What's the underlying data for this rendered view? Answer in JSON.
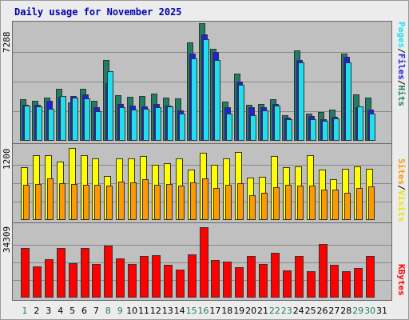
{
  "page": {
    "title": "Daily usage for November 2025"
  },
  "colors": {
    "hits": "#207e64",
    "files": "#2020e0",
    "pages": "#20e0f0",
    "visits": "#ffff00",
    "sites": "#ff9900",
    "kbytes": "#ff0000",
    "weekend_day": "#207e64",
    "weekday": "#000000"
  },
  "axes": {
    "top_max": "7288",
    "mid_max": "1200",
    "bot_max": "34309"
  },
  "legend": {
    "top": {
      "pages": "Pages",
      "sep1": "/",
      "files": "Files",
      "sep2": "/",
      "hits": "Hits"
    },
    "mid": {
      "sites": "Sites",
      "sep1": "/",
      "visits": "Visits"
    },
    "bot": {
      "kbytes": "KBytes"
    }
  },
  "chart_data": [
    {
      "type": "bar",
      "categories": [
        "1",
        "2",
        "3",
        "4",
        "5",
        "6",
        "7",
        "8",
        "9",
        "10",
        "11",
        "12",
        "13",
        "14",
        "15",
        "16",
        "17",
        "18",
        "19",
        "20",
        "21",
        "22",
        "23",
        "24",
        "25",
        "26",
        "27",
        "28",
        "29",
        "30",
        "31"
      ],
      "weekend_days": [
        "1",
        "8",
        "9",
        "15",
        "16",
        "22",
        "23",
        "29",
        "30"
      ],
      "ylim": [
        0,
        7288
      ],
      "series": [
        {
          "name": "Hits",
          "values": [
            2550,
            2450,
            2650,
            3200,
            2350,
            3200,
            2450,
            4950,
            2800,
            2700,
            2750,
            2900,
            2650,
            2600,
            6050,
            7250,
            5650,
            2400,
            4150,
            2200,
            2250,
            2550,
            1600,
            5550,
            1650,
            1750,
            1900,
            5350,
            2850,
            2650,
            0
          ]
        },
        {
          "name": "Files",
          "values": [
            2200,
            2200,
            2450,
            2700,
            2750,
            2850,
            2050,
            3550,
            2250,
            2150,
            2100,
            2250,
            2150,
            1850,
            5350,
            6550,
            5450,
            2050,
            3650,
            2050,
            2050,
            2250,
            1450,
            4950,
            1550,
            1350,
            1500,
            5150,
            2050,
            1900,
            0
          ]
        },
        {
          "name": "Pages",
          "values": [
            2150,
            2100,
            1950,
            2750,
            2650,
            2600,
            1800,
            4300,
            2050,
            1900,
            1950,
            2050,
            2100,
            1650,
            5050,
            6250,
            4950,
            1650,
            3450,
            1600,
            1850,
            2150,
            1350,
            4850,
            1350,
            1250,
            1400,
            4850,
            2100,
            1650,
            0
          ]
        }
      ]
    },
    {
      "type": "bar",
      "categories": [
        "1",
        "2",
        "3",
        "4",
        "5",
        "6",
        "7",
        "8",
        "9",
        "10",
        "11",
        "12",
        "13",
        "14",
        "15",
        "16",
        "17",
        "18",
        "19",
        "20",
        "21",
        "22",
        "23",
        "24",
        "25",
        "26",
        "27",
        "28",
        "29",
        "30",
        "31"
      ],
      "ylim": [
        0,
        1200
      ],
      "series": [
        {
          "name": "Visits",
          "values": [
            860,
            1060,
            1060,
            950,
            1180,
            1060,
            1010,
            720,
            1000,
            1000,
            1050,
            900,
            930,
            1000,
            820,
            1100,
            900,
            1000,
            1110,
            690,
            700,
            1040,
            860,
            880,
            1060,
            820,
            670,
            840,
            870,
            840,
            0
          ]
        },
        {
          "name": "Sites",
          "values": [
            580,
            590,
            680,
            600,
            590,
            580,
            570,
            560,
            620,
            610,
            660,
            570,
            590,
            560,
            610,
            680,
            520,
            580,
            600,
            410,
            440,
            540,
            580,
            560,
            560,
            500,
            500,
            440,
            520,
            550,
            0
          ]
        }
      ]
    },
    {
      "type": "bar",
      "categories": [
        "1",
        "2",
        "3",
        "4",
        "5",
        "6",
        "7",
        "8",
        "9",
        "10",
        "11",
        "12",
        "13",
        "14",
        "15",
        "16",
        "17",
        "18",
        "19",
        "20",
        "21",
        "22",
        "23",
        "24",
        "25",
        "26",
        "27",
        "28",
        "29",
        "30",
        "31"
      ],
      "ylim": [
        0,
        34309
      ],
      "series": [
        {
          "name": "KBytes",
          "values": [
            24100,
            15100,
            18900,
            24100,
            16900,
            24100,
            16300,
            25300,
            19100,
            16300,
            20100,
            20600,
            15900,
            13600,
            21100,
            34300,
            18400,
            17700,
            14700,
            20100,
            16300,
            21900,
            13100,
            20100,
            12700,
            26100,
            15900,
            12900,
            14500,
            20100,
            0
          ]
        }
      ]
    }
  ]
}
